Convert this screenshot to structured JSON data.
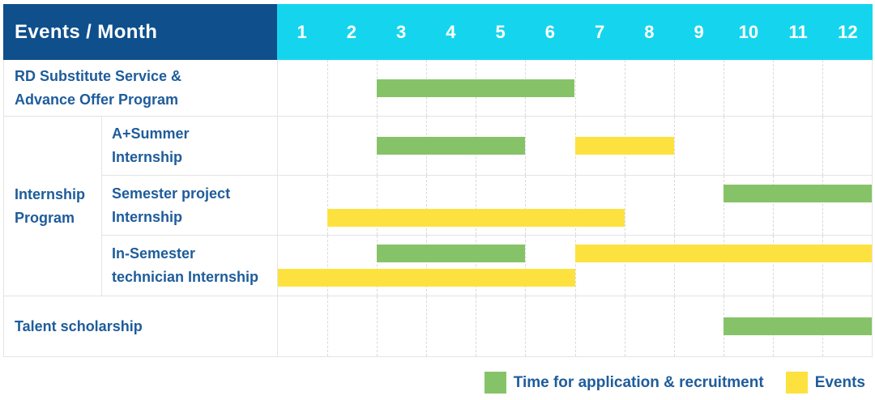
{
  "header": {
    "title": "Events / Month",
    "months": [
      "1",
      "2",
      "3",
      "4",
      "5",
      "6",
      "7",
      "8",
      "9",
      "10",
      "11",
      "12"
    ]
  },
  "colors": {
    "header_bg": "#0f4f8c",
    "months_bg": "#15d5ee",
    "bar_green": "#86c368",
    "bar_yellow": "#fde23f",
    "label_text": "#1e5c9b",
    "grid_line": "#e4e4e4"
  },
  "group_label": {
    "label": "Internship Program",
    "lines": [
      "Internship",
      "Program"
    ]
  },
  "legend": {
    "items": [
      {
        "kind": "application",
        "label": "Time for application & recruitment",
        "color": "#86c368"
      },
      {
        "kind": "event",
        "label": "Events",
        "color": "#fde23f"
      }
    ]
  },
  "chart_data": {
    "type": "gantt",
    "x_unit": "month",
    "x_range": [
      1,
      12
    ],
    "columns": [
      "1",
      "2",
      "3",
      "4",
      "5",
      "6",
      "7",
      "8",
      "9",
      "10",
      "11",
      "12"
    ],
    "legend": {
      "application": "Time for application & recruitment",
      "event": "Events"
    },
    "rows": [
      {
        "label": "RD Substitute Service & Advance Offer Program",
        "label_lines": [
          "RD Substitute Service &",
          "Advance Offer Program"
        ],
        "group": null,
        "lines": [
          [
            {
              "kind": "application",
              "start": 3,
              "end": 6
            }
          ]
        ]
      },
      {
        "label": "A+Summer Internship",
        "label_lines": [
          "A+Summer",
          "Internship"
        ],
        "group": "Internship Program",
        "lines": [
          [
            {
              "kind": "application",
              "start": 3,
              "end": 5
            },
            {
              "kind": "event",
              "start": 7,
              "end": 8
            }
          ]
        ]
      },
      {
        "label": "Semester project Internship",
        "label_lines": [
          "Semester project",
          "Internship"
        ],
        "group": "Internship Program",
        "lines": [
          [
            {
              "kind": "application",
              "start": 10,
              "end": 12
            }
          ],
          [
            {
              "kind": "event",
              "start": 2,
              "end": 7
            }
          ]
        ]
      },
      {
        "label": "In-Semester technician Internship",
        "label_lines": [
          "In-Semester",
          "technician Internship"
        ],
        "group": "Internship Program",
        "lines": [
          [
            {
              "kind": "application",
              "start": 3,
              "end": 5
            },
            {
              "kind": "event",
              "start": 7,
              "end": 12
            }
          ],
          [
            {
              "kind": "event",
              "start": 1,
              "end": 6
            }
          ]
        ]
      },
      {
        "label": "Talent scholarship",
        "label_lines": [
          "Talent scholarship"
        ],
        "group": null,
        "lines": [
          [
            {
              "kind": "application",
              "start": 10,
              "end": 12
            }
          ]
        ]
      }
    ]
  }
}
